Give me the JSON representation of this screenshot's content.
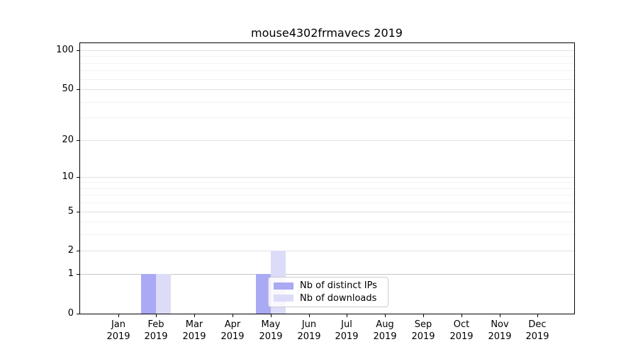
{
  "title": "mouse4302frmavecs 2019",
  "chart_data": {
    "type": "bar",
    "title": "mouse4302frmavecs 2019",
    "x_categories": [
      "Jan 2019",
      "Feb 2019",
      "Mar 2019",
      "Apr 2019",
      "May 2019",
      "Jun 2019",
      "Jul 2019",
      "Aug 2019",
      "Sep 2019",
      "Oct 2019",
      "Nov 2019",
      "Dec 2019"
    ],
    "x_tick_line1": [
      "Jan",
      "Feb",
      "Mar",
      "Apr",
      "May",
      "Jun",
      "Jul",
      "Aug",
      "Sep",
      "Oct",
      "Nov",
      "Dec"
    ],
    "x_tick_line2": "2019",
    "series": [
      {
        "name": "Nb of distinct IPs",
        "color": "#a9a9f4",
        "values": [
          0,
          1,
          0,
          0,
          1,
          0,
          0,
          0,
          0,
          0,
          0,
          0
        ]
      },
      {
        "name": "Nb of downloads",
        "color": "#dcdcf9",
        "values": [
          0,
          1,
          0,
          0,
          2,
          0,
          0,
          0,
          0,
          0,
          0,
          0
        ]
      }
    ],
    "y_scale": "log10(1+x)",
    "y_major_ticks": [
      0,
      1,
      2,
      5,
      10,
      20,
      50,
      100
    ],
    "y_minor_gridlines": [
      3,
      4,
      6,
      7,
      8,
      9,
      30,
      40,
      60,
      70,
      80,
      90
    ],
    "ylim": [
      0,
      115
    ],
    "grid": "horizontal",
    "legend_position": "inside-bottom-center"
  },
  "colors": {
    "bar_distinct_ips": "#a9a9f4",
    "bar_downloads": "#dcdcf9",
    "grid_major": "#e0e0e0",
    "grid_minor": "#f2f2f2",
    "grid_level_one": "#c6c6c6",
    "axis": "#000000",
    "legend_border": "#cccccc",
    "text": "#000000"
  }
}
